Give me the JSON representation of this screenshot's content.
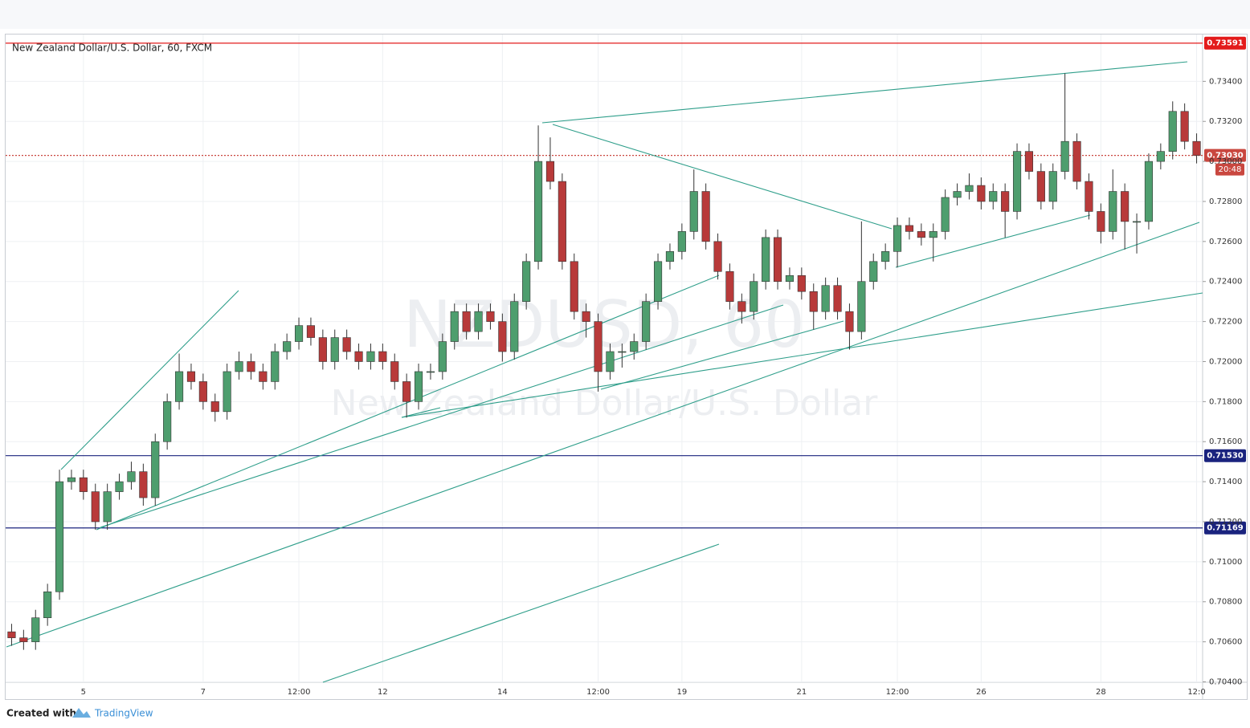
{
  "chart_data": {
    "type": "candlestick",
    "title": "New Zealand Dollar/U.S. Dollar, 60, FXCM",
    "watermark": "NZDUSD, 60",
    "watermark_subtitle": "New Zealand Dollar/U.S. Dollar",
    "countdown": "20:48",
    "footer": {
      "prefix": "Created with",
      "brand": "TradingView"
    },
    "up_color": "#4e9e6e",
    "down_color": "#b83a3a",
    "grid": true,
    "categories": [
      null,
      null,
      null,
      null,
      null,
      null,
      "5",
      null,
      null,
      null,
      null,
      null,
      null,
      null,
      null,
      null,
      "7",
      null,
      null,
      null,
      null,
      null,
      null,
      null,
      "12:00",
      null,
      null,
      null,
      null,
      null,
      null,
      "12",
      null,
      null,
      null,
      null,
      null,
      null,
      null,
      null,
      null,
      "14",
      null,
      null,
      null,
      null,
      null,
      null,
      null,
      "12:00",
      null,
      null,
      null,
      null,
      null,
      null,
      "19",
      null,
      null,
      null,
      null,
      null,
      null,
      null,
      null,
      null,
      "21",
      null,
      null,
      null,
      null,
      null,
      null,
      null,
      "12:00",
      null,
      null,
      null,
      null,
      null,
      null,
      "26",
      null,
      null,
      null,
      null,
      null,
      null,
      null,
      null,
      null,
      "28",
      null,
      null,
      null,
      null,
      null,
      null,
      null,
      "12:0"
    ],
    "open": [
      0.7065,
      0.7062,
      0.706,
      0.7072,
      0.7085,
      0.714,
      0.7142,
      0.7135,
      0.712,
      0.7135,
      0.714,
      0.7145,
      0.7132,
      0.716,
      0.718,
      0.7195,
      0.719,
      0.718,
      0.7175,
      0.7195,
      0.72,
      0.7195,
      0.719,
      0.7205,
      0.721,
      0.7218,
      0.7212,
      0.72,
      0.7212,
      0.7205,
      0.72,
      0.7205,
      0.72,
      0.719,
      0.718,
      0.7195,
      0.7195,
      0.721,
      0.7225,
      0.7215,
      0.7225,
      0.722,
      0.7205,
      0.723,
      0.725,
      0.73,
      0.729,
      0.725,
      0.7225,
      0.722,
      0.7195,
      0.7205,
      0.7205,
      0.721,
      0.723,
      0.725,
      0.7255,
      0.7265,
      0.7285,
      0.726,
      0.7245,
      0.723,
      0.7225,
      0.724,
      0.7262,
      0.724,
      0.7243,
      0.7235,
      0.7225,
      0.7238,
      0.7225,
      0.7215,
      0.724,
      0.725,
      0.7255,
      0.7268,
      0.7265,
      0.7262,
      0.7265,
      0.7282,
      0.7285,
      0.7288,
      0.728,
      0.7285,
      0.7275,
      0.7305,
      0.7295,
      0.728,
      0.7295,
      0.731,
      0.729,
      0.7275,
      0.7265,
      0.7285,
      0.727,
      0.727,
      0.73,
      0.7305,
      0.7325,
      0.731
    ],
    "high": [
      0.7069,
      0.7066,
      0.7076,
      0.7089,
      0.7146,
      0.7146,
      0.7146,
      0.7139,
      0.7139,
      0.7144,
      0.715,
      0.7149,
      0.7164,
      0.7184,
      0.7204,
      0.7199,
      0.7194,
      0.7184,
      0.7199,
      0.7205,
      0.7204,
      0.7199,
      0.7209,
      0.7214,
      0.7222,
      0.7222,
      0.7216,
      0.7216,
      0.7216,
      0.7209,
      0.7209,
      0.7209,
      0.7204,
      0.7194,
      0.7199,
      0.7199,
      0.7214,
      0.7229,
      0.7229,
      0.7229,
      0.7229,
      0.7224,
      0.7234,
      0.7254,
      0.7318,
      0.7312,
      0.7294,
      0.7254,
      0.7229,
      0.7224,
      0.7209,
      0.7209,
      0.7214,
      0.7234,
      0.7254,
      0.7259,
      0.7269,
      0.7296,
      0.7289,
      0.7264,
      0.7249,
      0.7234,
      0.7244,
      0.7266,
      0.7266,
      0.7247,
      0.7247,
      0.7239,
      0.7242,
      0.7242,
      0.7229,
      0.727,
      0.7254,
      0.7259,
      0.7272,
      0.7272,
      0.7269,
      0.7269,
      0.7286,
      0.7289,
      0.7294,
      0.7292,
      0.7289,
      0.7289,
      0.7309,
      0.7309,
      0.7299,
      0.7299,
      0.7344,
      0.7314,
      0.7294,
      0.7279,
      0.7296,
      0.7289,
      0.7274,
      0.7304,
      0.7309,
      0.733,
      0.7329,
      0.7314
    ],
    "low": [
      0.7058,
      0.7056,
      0.7056,
      0.7068,
      0.7081,
      0.7136,
      0.7131,
      0.7116,
      0.7116,
      0.7131,
      0.7136,
      0.7128,
      0.7128,
      0.7156,
      0.7176,
      0.7186,
      0.7176,
      0.717,
      0.7171,
      0.7191,
      0.7191,
      0.7186,
      0.7186,
      0.7201,
      0.7206,
      0.7208,
      0.7196,
      0.7196,
      0.7201,
      0.7196,
      0.7196,
      0.7196,
      0.7186,
      0.7172,
      0.7176,
      0.7191,
      0.7191,
      0.7206,
      0.7211,
      0.7211,
      0.7216,
      0.72,
      0.7201,
      0.7226,
      0.7246,
      0.7286,
      0.7246,
      0.7221,
      0.7212,
      0.7185,
      0.7191,
      0.7197,
      0.7201,
      0.7206,
      0.7226,
      0.7246,
      0.7251,
      0.7261,
      0.7256,
      0.7241,
      0.7226,
      0.7219,
      0.7221,
      0.7236,
      0.7236,
      0.7236,
      0.7231,
      0.7216,
      0.7221,
      0.7221,
      0.7206,
      0.7211,
      0.7236,
      0.7246,
      0.7247,
      0.7261,
      0.7258,
      0.725,
      0.7261,
      0.7278,
      0.7281,
      0.7276,
      0.7276,
      0.7262,
      0.7271,
      0.7291,
      0.7276,
      0.7276,
      0.7291,
      0.7286,
      0.7271,
      0.7259,
      0.7261,
      0.7256,
      0.7254,
      0.7266,
      0.7296,
      0.7301,
      0.7306,
      0.7299
    ],
    "close": [
      0.7062,
      0.706,
      0.7072,
      0.7085,
      0.714,
      0.7142,
      0.7135,
      0.712,
      0.7135,
      0.714,
      0.7145,
      0.7132,
      0.716,
      0.718,
      0.7195,
      0.719,
      0.718,
      0.7175,
      0.7195,
      0.72,
      0.7195,
      0.719,
      0.7205,
      0.721,
      0.7218,
      0.7212,
      0.72,
      0.7212,
      0.7205,
      0.72,
      0.7205,
      0.72,
      0.719,
      0.718,
      0.7195,
      0.7195,
      0.721,
      0.7225,
      0.7215,
      0.7225,
      0.722,
      0.7205,
      0.723,
      0.725,
      0.73,
      0.729,
      0.725,
      0.7225,
      0.722,
      0.7195,
      0.7205,
      0.7205,
      0.721,
      0.723,
      0.725,
      0.7255,
      0.7265,
      0.7285,
      0.726,
      0.7245,
      0.723,
      0.7225,
      0.724,
      0.7262,
      0.724,
      0.7243,
      0.7235,
      0.7225,
      0.7238,
      0.7225,
      0.7215,
      0.724,
      0.725,
      0.7255,
      0.7268,
      0.7265,
      0.7262,
      0.7265,
      0.7282,
      0.7285,
      0.7288,
      0.728,
      0.7285,
      0.7275,
      0.7305,
      0.7295,
      0.728,
      0.7295,
      0.731,
      0.729,
      0.7275,
      0.7265,
      0.7285,
      0.727,
      0.727,
      0.73,
      0.7305,
      0.7325,
      0.731,
      0.7303
    ],
    "ylim": [
      0.70398,
      0.73634
    ],
    "yticks": [
      {
        "value": 0.704,
        "label": "0.70400"
      },
      {
        "value": 0.706,
        "label": "0.70600"
      },
      {
        "value": 0.708,
        "label": "0.70800"
      },
      {
        "value": 0.71,
        "label": "0.71000"
      },
      {
        "value": 0.712,
        "label": "0.71200"
      },
      {
        "value": 0.714,
        "label": "0.71400"
      },
      {
        "value": 0.716,
        "label": "0.71600"
      },
      {
        "value": 0.718,
        "label": "0.71800"
      },
      {
        "value": 0.72,
        "label": "0.72000"
      },
      {
        "value": 0.722,
        "label": "0.72200"
      },
      {
        "value": 0.724,
        "label": "0.72400"
      },
      {
        "value": 0.726,
        "label": "0.72600"
      },
      {
        "value": 0.728,
        "label": "0.72800"
      },
      {
        "value": 0.73,
        "label": "0.73000"
      },
      {
        "value": 0.732,
        "label": "0.73200"
      },
      {
        "value": 0.734,
        "label": "0.73400"
      }
    ],
    "levels": [
      {
        "price": 0.73591,
        "color": "#e31b1b",
        "style": "solid"
      },
      {
        "price": {
          "value": 0.7303,
          "label": "0.73030"
        },
        "color": "#c9473f",
        "style": "dotted"
      },
      {
        "price": {
          "value": 0.7153,
          "label": "0.71530"
        },
        "color": "#1a237e",
        "style": "solid"
      },
      {
        "price": 0.71169,
        "color": "#1a237e",
        "style": "solid"
      }
    ]
  }
}
